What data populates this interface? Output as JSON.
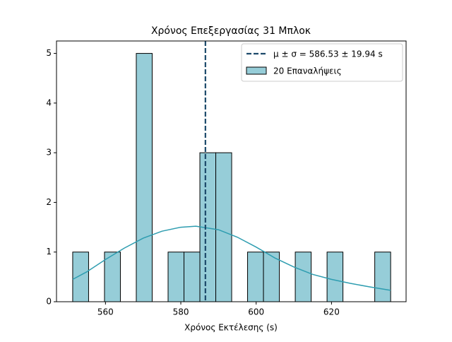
{
  "chart_data": {
    "type": "histogram",
    "title": "Χρόνος Επεξεργασίας 31 Μπλοκ",
    "x_label": "Χρόνος Εκτέλεσης (s)",
    "bins": [
      551.3,
      555.52,
      559.74,
      563.96,
      568.18,
      572.4,
      576.62,
      580.84,
      585.06,
      589.28,
      593.5,
      597.72,
      601.94,
      606.16,
      610.38,
      614.6,
      618.82,
      623.04,
      627.26,
      631.48,
      635.7
    ],
    "values": [
      1,
      0,
      1,
      0,
      5,
      0,
      1,
      1,
      3,
      3,
      0,
      1,
      1,
      0,
      1,
      0,
      1,
      0,
      0,
      1
    ],
    "name": "20 Επαναλήψεις",
    "color": "#96cdd8",
    "kde": {
      "x": [
        551.3,
        555,
        560,
        565,
        570,
        575,
        580,
        584,
        590,
        595,
        600,
        605,
        610,
        615,
        620,
        625,
        630,
        635.7
      ],
      "values": [
        0.45,
        0.6,
        0.85,
        1.08,
        1.28,
        1.42,
        1.5,
        1.52,
        1.45,
        1.3,
        1.1,
        0.88,
        0.7,
        0.55,
        0.45,
        0.37,
        0.3,
        0.23
      ],
      "color": "#2e9db0"
    },
    "vline": {
      "value": 586.53,
      "name": "μ ± σ = 586.53 ± 19.94 s",
      "color": "#1d4a6b"
    },
    "xlim": [
      547,
      639.8
    ],
    "xticks": [
      560,
      580,
      600,
      620
    ],
    "ylim": [
      0,
      5.25
    ],
    "yticks": [
      0,
      1,
      2,
      3,
      4,
      5
    ],
    "legend": "upper right"
  }
}
